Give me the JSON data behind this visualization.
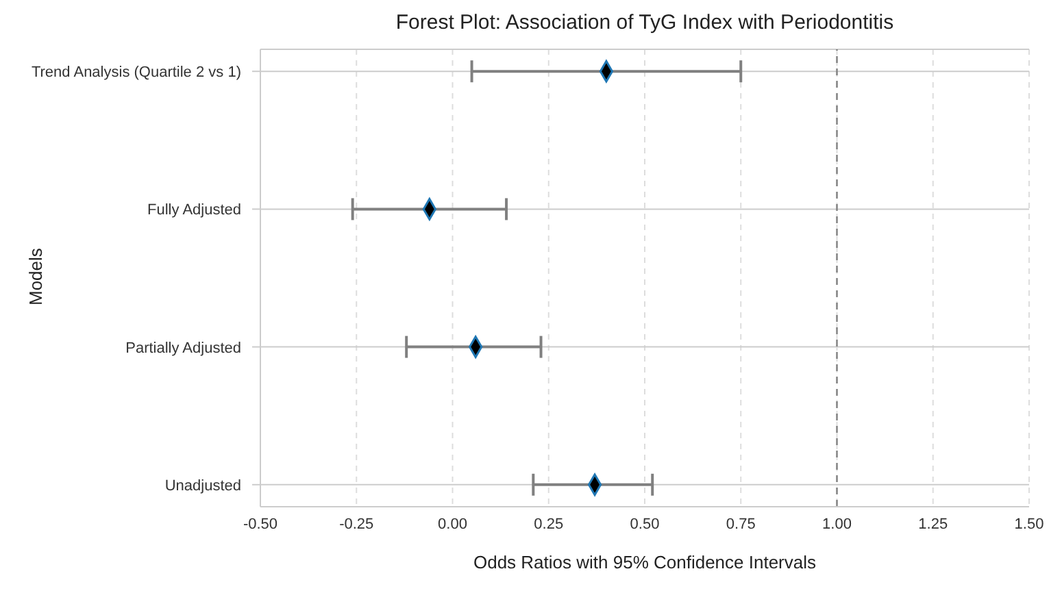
{
  "chart_data": {
    "type": "scatter",
    "orientation": "horizontal",
    "title": "Forest Plot: Association of TyG Index with Periodontitis",
    "xlabel": "Odds Ratios with 95% Confidence Intervals",
    "ylabel": "Models",
    "categories": [
      "Trend Analysis (Quartile 2 vs 1)",
      "Fully Adjusted",
      "Partially Adjusted",
      "Unadjusted"
    ],
    "series": [
      {
        "color": "#000000",
        "values": [
          0.4,
          -0.06,
          0.06,
          0.37
        ],
        "errors": [
          [
            0.05,
            0.75
          ],
          [
            -0.26,
            0.14
          ],
          [
            -0.12,
            0.23
          ],
          [
            0.21,
            0.52
          ]
        ]
      }
    ],
    "xlim": [
      -0.5,
      1.5
    ],
    "xticks": [
      {
        "value": -0.5,
        "label": "-0.50"
      },
      {
        "value": -0.25,
        "label": "-0.25"
      },
      {
        "value": 0,
        "label": "0.00"
      },
      {
        "value": 0.25,
        "label": "0.25"
      },
      {
        "value": 0.5,
        "label": "0.50"
      },
      {
        "value": 0.75,
        "label": "0.75"
      },
      {
        "value": 1,
        "label": "1.00"
      },
      {
        "value": 1.25,
        "label": "1.25"
      },
      {
        "value": 1.5,
        "label": "1.50"
      }
    ],
    "ref_lines": [
      {
        "axis": "x",
        "value": 1,
        "color": "#808080",
        "line_style": "dashed"
      }
    ],
    "grid": true,
    "marker": "diamond",
    "legend": false
  }
}
